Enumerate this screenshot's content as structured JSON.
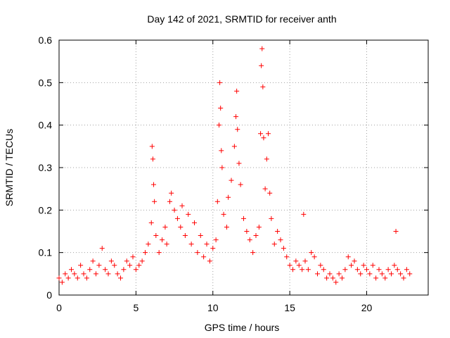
{
  "chart_data": {
    "type": "scatter",
    "title": "Day 142 of 2021, SRMTID for receiver anth",
    "xlabel": "GPS time / hours",
    "ylabel": "SRMTID / TECUs",
    "xlim": [
      0,
      24
    ],
    "ylim": [
      0,
      0.6
    ],
    "x_ticks": [
      0,
      5,
      10,
      15,
      20
    ],
    "x_tick_labels": [
      "0",
      "5",
      "10",
      "15",
      "20"
    ],
    "y_ticks": [
      0,
      0.1,
      0.2,
      0.3,
      0.4,
      0.5,
      0.6
    ],
    "y_tick_labels": [
      "0",
      "0.1",
      "0.2",
      "0.3",
      "0.4",
      "0.5",
      "0.6"
    ],
    "grid": true,
    "marker": "+",
    "series": [
      {
        "name": "SRMTID",
        "color": "#ff0000",
        "points": [
          [
            0.0,
            0.04
          ],
          [
            0.2,
            0.03
          ],
          [
            0.4,
            0.05
          ],
          [
            0.6,
            0.04
          ],
          [
            0.8,
            0.06
          ],
          [
            1.0,
            0.05
          ],
          [
            1.2,
            0.04
          ],
          [
            1.4,
            0.07
          ],
          [
            1.6,
            0.05
          ],
          [
            1.8,
            0.04
          ],
          [
            2.0,
            0.06
          ],
          [
            2.2,
            0.08
          ],
          [
            2.4,
            0.05
          ],
          [
            2.6,
            0.07
          ],
          [
            2.8,
            0.11
          ],
          [
            3.0,
            0.06
          ],
          [
            3.2,
            0.05
          ],
          [
            3.4,
            0.08
          ],
          [
            3.6,
            0.07
          ],
          [
            3.8,
            0.05
          ],
          [
            4.0,
            0.04
          ],
          [
            4.2,
            0.06
          ],
          [
            4.4,
            0.08
          ],
          [
            4.6,
            0.07
          ],
          [
            4.8,
            0.09
          ],
          [
            5.0,
            0.06
          ],
          [
            5.2,
            0.07
          ],
          [
            5.4,
            0.08
          ],
          [
            5.6,
            0.1
          ],
          [
            5.8,
            0.12
          ],
          [
            6.0,
            0.17
          ],
          [
            6.05,
            0.35
          ],
          [
            6.1,
            0.32
          ],
          [
            6.15,
            0.26
          ],
          [
            6.2,
            0.22
          ],
          [
            6.3,
            0.14
          ],
          [
            6.5,
            0.1
          ],
          [
            6.7,
            0.13
          ],
          [
            6.9,
            0.16
          ],
          [
            7.0,
            0.12
          ],
          [
            7.2,
            0.22
          ],
          [
            7.3,
            0.24
          ],
          [
            7.5,
            0.2
          ],
          [
            7.7,
            0.18
          ],
          [
            7.9,
            0.16
          ],
          [
            8.0,
            0.21
          ],
          [
            8.2,
            0.14
          ],
          [
            8.4,
            0.19
          ],
          [
            8.6,
            0.12
          ],
          [
            8.8,
            0.17
          ],
          [
            9.0,
            0.1
          ],
          [
            9.2,
            0.14
          ],
          [
            9.4,
            0.09
          ],
          [
            9.6,
            0.12
          ],
          [
            9.8,
            0.08
          ],
          [
            10.0,
            0.11
          ],
          [
            10.2,
            0.13
          ],
          [
            10.3,
            0.22
          ],
          [
            10.4,
            0.4
          ],
          [
            10.45,
            0.5
          ],
          [
            10.5,
            0.44
          ],
          [
            10.55,
            0.34
          ],
          [
            10.6,
            0.3
          ],
          [
            10.7,
            0.19
          ],
          [
            10.9,
            0.16
          ],
          [
            11.0,
            0.23
          ],
          [
            11.2,
            0.27
          ],
          [
            11.4,
            0.35
          ],
          [
            11.5,
            0.42
          ],
          [
            11.55,
            0.48
          ],
          [
            11.6,
            0.39
          ],
          [
            11.7,
            0.31
          ],
          [
            11.8,
            0.26
          ],
          [
            12.0,
            0.18
          ],
          [
            12.2,
            0.15
          ],
          [
            12.4,
            0.13
          ],
          [
            12.6,
            0.1
          ],
          [
            12.8,
            0.14
          ],
          [
            13.0,
            0.16
          ],
          [
            13.1,
            0.38
          ],
          [
            13.15,
            0.54
          ],
          [
            13.2,
            0.58
          ],
          [
            13.25,
            0.49
          ],
          [
            13.3,
            0.37
          ],
          [
            13.4,
            0.25
          ],
          [
            13.5,
            0.32
          ],
          [
            13.6,
            0.38
          ],
          [
            13.7,
            0.24
          ],
          [
            13.8,
            0.18
          ],
          [
            14.0,
            0.12
          ],
          [
            14.2,
            0.15
          ],
          [
            14.4,
            0.13
          ],
          [
            14.6,
            0.11
          ],
          [
            14.8,
            0.09
          ],
          [
            15.0,
            0.07
          ],
          [
            15.2,
            0.06
          ],
          [
            15.4,
            0.08
          ],
          [
            15.6,
            0.07
          ],
          [
            15.8,
            0.06
          ],
          [
            15.9,
            0.19
          ],
          [
            16.0,
            0.08
          ],
          [
            16.2,
            0.06
          ],
          [
            16.4,
            0.1
          ],
          [
            16.6,
            0.09
          ],
          [
            16.8,
            0.05
          ],
          [
            17.0,
            0.07
          ],
          [
            17.2,
            0.06
          ],
          [
            17.4,
            0.04
          ],
          [
            17.6,
            0.05
          ],
          [
            17.8,
            0.04
          ],
          [
            18.0,
            0.03
          ],
          [
            18.2,
            0.05
          ],
          [
            18.4,
            0.04
          ],
          [
            18.6,
            0.06
          ],
          [
            18.8,
            0.09
          ],
          [
            19.0,
            0.07
          ],
          [
            19.2,
            0.08
          ],
          [
            19.4,
            0.06
          ],
          [
            19.6,
            0.05
          ],
          [
            19.8,
            0.07
          ],
          [
            20.0,
            0.06
          ],
          [
            20.2,
            0.05
          ],
          [
            20.4,
            0.07
          ],
          [
            20.6,
            0.04
          ],
          [
            20.8,
            0.06
          ],
          [
            21.0,
            0.05
          ],
          [
            21.2,
            0.04
          ],
          [
            21.4,
            0.06
          ],
          [
            21.6,
            0.05
          ],
          [
            21.8,
            0.07
          ],
          [
            21.9,
            0.15
          ],
          [
            22.0,
            0.06
          ],
          [
            22.2,
            0.05
          ],
          [
            22.4,
            0.04
          ],
          [
            22.6,
            0.06
          ],
          [
            22.8,
            0.05
          ]
        ]
      }
    ]
  }
}
